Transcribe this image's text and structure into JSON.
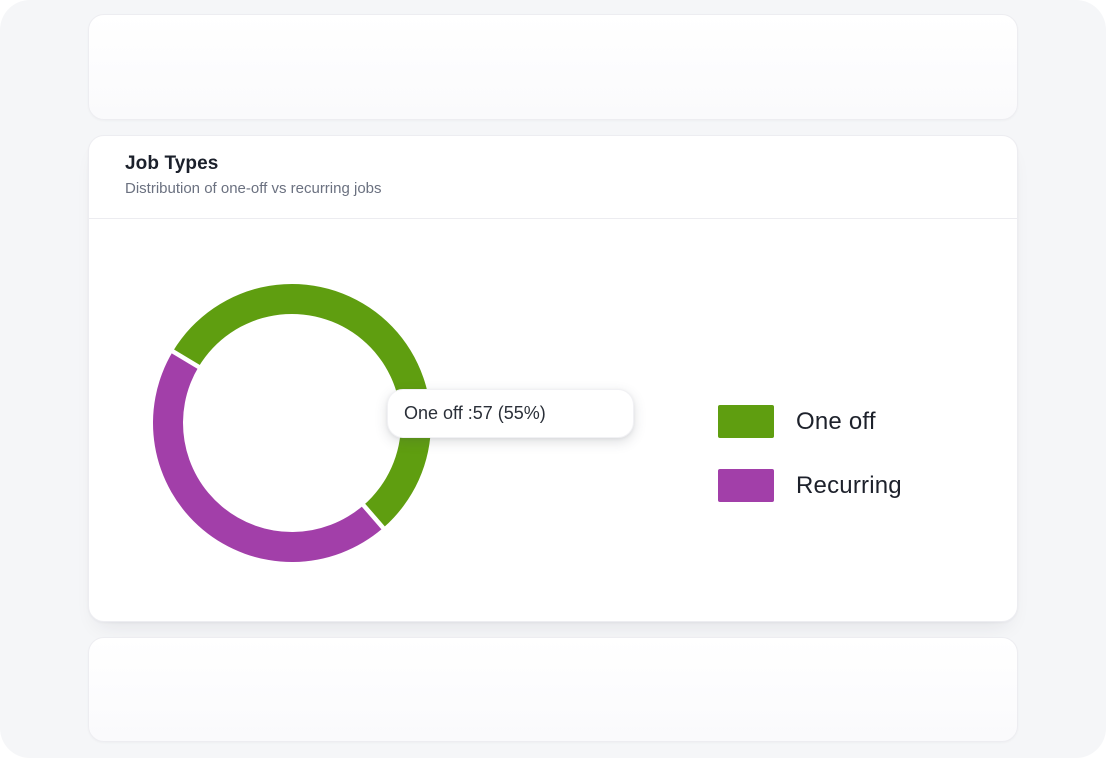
{
  "page": {
    "background_color": "#ffffff",
    "panel_color": "#f5f6f8"
  },
  "card": {
    "title": "Job Types",
    "subtitle": "Distribution of one-off vs recurring jobs"
  },
  "tooltip": {
    "text": "One off :57 (55%)"
  },
  "chart_data": {
    "type": "pie",
    "variant": "donut",
    "title": "Job Types",
    "subtitle": "Distribution of one-off vs recurring jobs",
    "categories": [
      "One off",
      "Recurring"
    ],
    "series": [
      {
        "name": "One off",
        "count": 57,
        "percent": 55,
        "color": "#5f9e10"
      },
      {
        "name": "Recurring",
        "percent": 45,
        "color": "#a23fa9"
      }
    ],
    "legend_position": "right",
    "visible_tooltip": "One off :57 (55%)"
  }
}
